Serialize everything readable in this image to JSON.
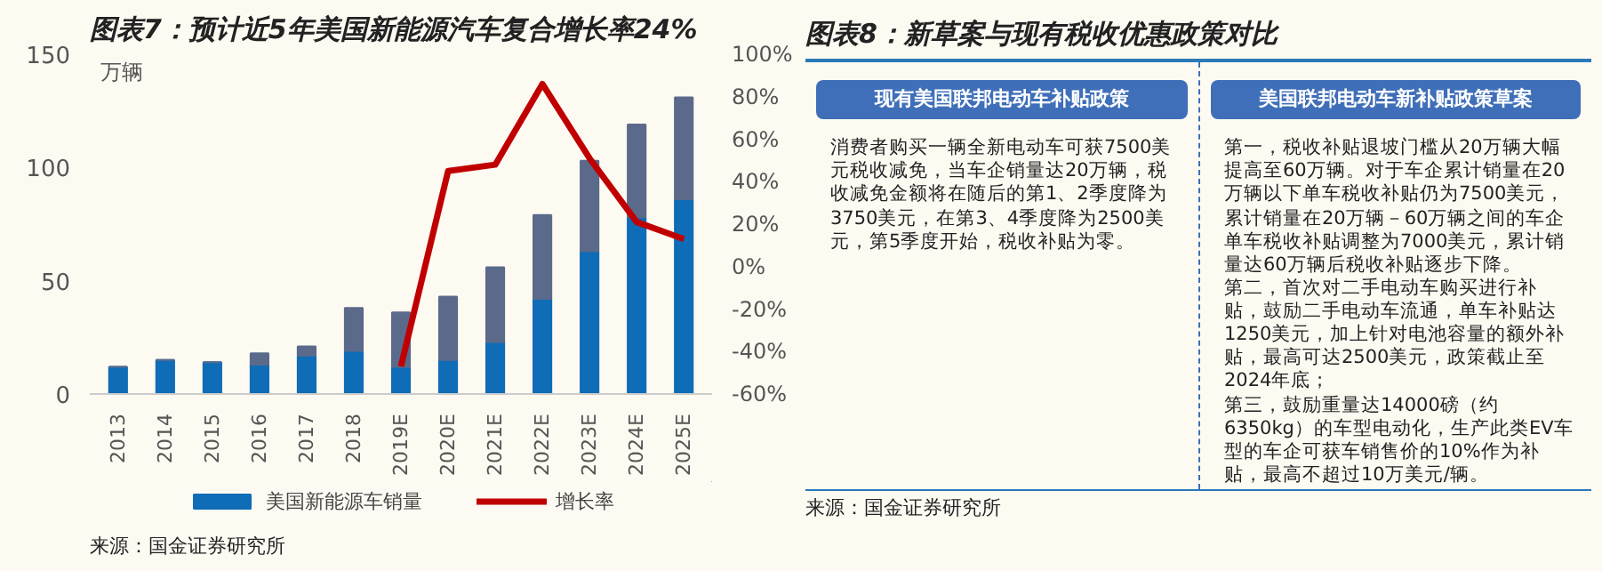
{
  "chart_data": [
    {
      "type": "bar",
      "title": "图表7：预计近5年美国新能源汽车复合增长率24%",
      "ylabel": "万辆",
      "categories": [
        "2013",
        "2014",
        "2015",
        "2016",
        "2017",
        "2018",
        "2019E",
        "2020E",
        "2021E",
        "2022E",
        "2023E",
        "2024E",
        "2025E"
      ],
      "stacked": true,
      "series": [
        {
          "name": "美国新能源车销量",
          "color": "#0f6cb6",
          "values": [
            12,
            15,
            14,
            13,
            17,
            19,
            12,
            15,
            23,
            42,
            63,
            78,
            86
          ]
        },
        {
          "color": "#5b6a8a",
          "values": [
            0,
            0,
            0,
            5,
            4,
            19,
            24,
            28,
            33,
            37,
            40,
            41,
            45
          ]
        },
        {
          "name": "增长率",
          "type": "line",
          "axis": "y2",
          "color": "#c00000",
          "values": [
            null,
            null,
            null,
            null,
            null,
            null,
            -47,
            45,
            48,
            86,
            51,
            21,
            13
          ]
        }
      ],
      "ylim": [
        0,
        150
      ],
      "yticks": [
        0,
        50,
        100,
        150
      ],
      "y2lim": [
        -60,
        100
      ],
      "y2ticks": [
        {
          "value": -60,
          "label": "-60%"
        },
        {
          "value": -40,
          "label": "-40%"
        },
        {
          "value": -20,
          "label": "-20%"
        },
        {
          "value": 0,
          "label": "0%"
        },
        {
          "value": 20,
          "label": "20%"
        },
        {
          "value": 40,
          "label": "40%"
        },
        {
          "value": 60,
          "label": "60%"
        },
        {
          "value": 80,
          "label": "80%"
        },
        {
          "value": 100,
          "label": "100%"
        }
      ],
      "grid": false,
      "legend": "bottom",
      "annotations": [
        "来源：国金证券研究所"
      ]
    },
    {
      "type": "other",
      "title": "图表8：新草案与现有税收优惠政策对比",
      "annotations": [
        "现有美国联邦电动车补贴政策",
        "消费者购买一辆全新电动车可获7500美元税收减免，当车企销量达20万辆，税收减免金额将在随后的第1、2季度降为3750美元，在第3、4季度降为2500美元，第5季度开始，税收补贴为零。",
        "美国联邦电动车新补贴政策草案",
        "第一，税收补贴退坡门槛从20万辆大幅提高至60万辆。对于车企累计销量在20万辆以下单车税收补贴仍为7500美元，累计销量在20万辆－60万辆之间的车企单车税收补贴调整为7000美元，累计销量达60万辆后税收补贴逐步下降。",
        "第二，首次对二手电动车购买进行补贴，鼓励二手电动车流通，单车补贴达1250美元，加上针对电池容量的额外补贴，最高可达2500美元，政策截止至2024年底；",
        "第三，鼓励重量达14000磅（约6350kg）的车型电动化，生产此类EV车型的车企可获车销售价的10%作为补贴，最高不超过10万美元/辆。",
        "来源：国金证券研究所"
      ]
    }
  ]
}
